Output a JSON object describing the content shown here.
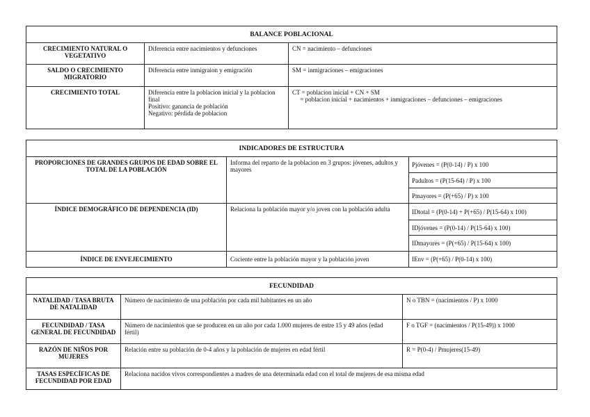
{
  "balance": {
    "title": "BALANCE POBLACIONAL",
    "rows": [
      {
        "concept": "CRECIMIENTO NATURAL O VEGETATIVO",
        "description": "Diferencia entre nacimientos y defunciones",
        "formula": "CN = nacimiento – defunciones"
      },
      {
        "concept": "SALDO O CRECIMIENTO MIGRATORIO",
        "description": "Diferencia entre inmigraion y emigración",
        "formula": "SM = inmigraciones – emigraciones"
      },
      {
        "concept": "CRECIMIENTO TOTAL",
        "description": "Diferencia entre la poblacion inicial y la poblacion final\nPositivo: ganancia de población\nNegativo: pérdida de poblacion",
        "formula": "CT = poblacion inicial + CN + SM\n     = poblacion inicial + nacimientos + inmigraciones – defunciones – emigraciones"
      }
    ]
  },
  "estructura": {
    "title": "INDICADORES DE ESTRUCTURA",
    "rows": [
      {
        "concept": "PROPORCIONES DE GRANDES GRUPOS DE EDAD SOBRE EL TOTAL DE LA POBLACIÓN",
        "description": "Informa del reparto de la poblacion en 3 grupos: jóvenes, adultos y mayores",
        "formulas": [
          "Pjóvenes = (P(0-14) / P) x 100",
          "Padultos = (P(15-64) / P) x 100",
          "Pmayores = (P(+65) / P) x 100"
        ]
      },
      {
        "concept": "ÍNDICE DEMOGRÁFICO DE DEPENDENCIA (ID)",
        "description": "Relaciona la población mayor y/o joven con la población adulta",
        "formulas": [
          "IDtotal = (P(0-14) + P(+65) / P(15-64) x 100)",
          "IDjóvenes = (P(0-14) / P(15-64) x 100)",
          "IDmayores = (P(+65) / P(15-64) x 100)"
        ]
      },
      {
        "concept": "ÍNDICE DE ENVEJECIMIENTO",
        "description": "Cociente entre la población mayor y la población joven",
        "formulas": [
          "IEnv = (P(+65) / P(0-14) x 100)"
        ]
      }
    ]
  },
  "fecundidad": {
    "title": "FECUNDIDAD",
    "rows": [
      {
        "concept": "NATALIDAD / TASA BRUTA DE NATALIDAD",
        "description": "Número de nacimiento de una población por cada mil habitantes en un año",
        "formula": "N o TBN = (nacimientos / P) x 1000"
      },
      {
        "concept": "FECUNDIDAD / TASA GENERAL DE FECUNDIDAD",
        "description": "Número de nacimientos que se producen en un año por cada 1.000 mujeres de entre 15 y 49 años (edad fértil)",
        "formula": "F o TGF = (nacimientos / P(15-49)) x 1000"
      },
      {
        "concept": "RAZÓN DE NIÑOS POR MUJERES",
        "description": "Relación entre su población de 0-4 años y la población de mujeres en edad fértil",
        "formula": "R = P(0-4) / Pmujeres(15-49)"
      },
      {
        "concept": "TASAS ESPECÍFICAS DE FECUNDIDAD POR EDAD",
        "description": "Relaciona nacidos vivos correspondientes a madres de una determinada edad con el total de mujeres de esa misma edad"
      }
    ]
  }
}
